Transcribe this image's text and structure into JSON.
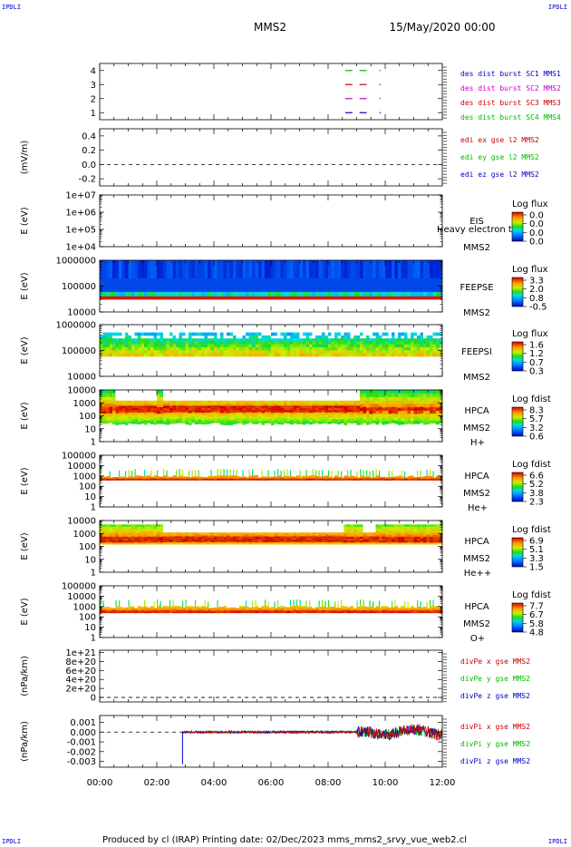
{
  "header": {
    "corner_labels": [
      "IPDLI",
      "IPDLI",
      "IPDLI",
      "IPDLI"
    ],
    "title": "MMS2",
    "date": "15/May/2020 00:00",
    "footer": "Produced by cl (IRAP)   Printing date: 02/Dec/2023   mms_mms2_srvy_vue_web2.cl"
  },
  "chart_data": {
    "type": "multi-panel-timeseries",
    "time_axis": {
      "unit": "hours",
      "range": [
        0,
        12
      ],
      "ticks": [
        0,
        2,
        4,
        6,
        8,
        10,
        12
      ],
      "tick_labels": [
        "00:00",
        "02:00",
        "04:00",
        "06:00",
        "08:00",
        "10:00",
        "12:00"
      ]
    },
    "panels": [
      {
        "id": "burst",
        "kind": "burst",
        "ylabel": "",
        "ylim": [
          0.5,
          4.5
        ],
        "yticks": [
          1,
          2,
          3,
          4
        ],
        "ytick_labels": [
          "1",
          "2",
          "3",
          "4"
        ],
        "legend": [
          {
            "text": "des dist burst SC1 MMS1",
            "color": "#0000cc"
          },
          {
            "text": "des dist burst SC2 MMS2",
            "color": "#cc00cc"
          },
          {
            "text": "des dist burst SC3 MMS3",
            "color": "#cc0000"
          },
          {
            "text": "des dist burst SC4 MMS4",
            "color": "#00bb00"
          }
        ],
        "bursts": [
          {
            "sc": 4,
            "color": "#00bb00",
            "intervals": [
              [
                8.6,
                8.85
              ],
              [
                9.1,
                9.35
              ],
              [
                9.8,
                9.85
              ]
            ]
          },
          {
            "sc": 3,
            "color": "#cc0000",
            "intervals": [
              [
                8.6,
                8.85
              ],
              [
                9.1,
                9.35
              ],
              [
                9.8,
                9.85
              ]
            ]
          },
          {
            "sc": 2,
            "color": "#cc00cc",
            "intervals": [
              [
                8.6,
                8.85
              ],
              [
                9.1,
                9.35
              ],
              [
                9.8,
                9.85
              ]
            ]
          },
          {
            "sc": 1,
            "color": "#0000cc",
            "intervals": [
              [
                8.6,
                8.85
              ],
              [
                9.1,
                9.35
              ],
              [
                9.8,
                9.85
              ]
            ]
          }
        ]
      },
      {
        "id": "edi",
        "kind": "line",
        "ylabel": "(mV/m)",
        "ylim": [
          -0.3,
          0.5
        ],
        "yticks": [
          -0.2,
          0.0,
          0.2,
          0.4
        ],
        "ytick_labels": [
          "-0.2",
          "0.0",
          "0.2",
          "0.4"
        ],
        "zero_line": 0,
        "legend": [
          {
            "text": "edi ex gse l2 MMS2",
            "color": "#cc0000"
          },
          {
            "text": "edi ey gse l2 MMS2",
            "color": "#00bb00"
          },
          {
            "text": "edi ez gse l2 MMS2",
            "color": "#0000cc"
          }
        ]
      },
      {
        "id": "eis",
        "kind": "spectrogram",
        "scale": "log",
        "ylabel": "E (eV)",
        "ylim": [
          10000,
          10000000
        ],
        "ytick_labels": [
          "1e+04",
          "1e+05",
          "1e+06",
          "1e+07"
        ],
        "instrument": [
          "EIS",
          "MMS2"
        ],
        "overlay_text": "Heavy electron to",
        "cbar": {
          "title": "Log flux",
          "labels": [
            "0.0",
            "0.0",
            "0.0",
            "0.0"
          ]
        },
        "data_band": null
      },
      {
        "id": "feepse",
        "kind": "spectrogram",
        "scale": "log",
        "ylabel": "E (eV)",
        "ylim": [
          10000,
          1000000
        ],
        "ytick_labels": [
          "10000",
          "100000",
          "1000000"
        ],
        "instrument": [
          "FEEPSE",
          "MMS2"
        ],
        "cbar": {
          "title": "Log flux",
          "labels": [
            "3.3",
            "2.0",
            "0.8",
            "-0.5"
          ]
        },
        "data_band": {
          "top": 1000000,
          "red_floor": 30000,
          "red_top": 40000
        }
      },
      {
        "id": "feepsi",
        "kind": "spectrogram",
        "scale": "log",
        "ylabel": "E (eV)",
        "ylim": [
          10000,
          1000000
        ],
        "ytick_labels": [
          "10000",
          "100000",
          "1000000"
        ],
        "instrument": [
          "FEEPSI",
          "MMS2"
        ],
        "cbar": {
          "title": "Log flux",
          "labels": [
            "1.6",
            "1.2",
            "0.7",
            "0.3"
          ]
        },
        "data_band": {
          "top": 500000,
          "bottom": 60000
        }
      },
      {
        "id": "hpca_h",
        "kind": "spectrogram",
        "scale": "log",
        "ylabel": "E (eV)",
        "ylim": [
          1,
          10000
        ],
        "ytick_labels": [
          "1",
          "10",
          "100",
          "1000",
          "10000"
        ],
        "instrument": [
          "HPCA",
          "MMS2",
          "H+"
        ],
        "cbar": {
          "title": "Log fdist",
          "labels": [
            "8.3",
            "5.7",
            "3.2",
            "0.6"
          ]
        },
        "data_band": {
          "bottom": 20
        }
      },
      {
        "id": "hpca_he",
        "kind": "spectrogram",
        "scale": "log",
        "ylabel": "E (eV)",
        "ylim": [
          1,
          100000
        ],
        "ytick_labels": [
          "1",
          "10",
          "100",
          "1000",
          "10000",
          "100000"
        ],
        "instrument": [
          "HPCA",
          "MMS2",
          "He+"
        ],
        "cbar": {
          "title": "Log fdist",
          "labels": [
            "6.6",
            "5.2",
            "3.8",
            "2.3"
          ]
        },
        "data_band": {
          "red_bottom": 400,
          "red_top": 600
        }
      },
      {
        "id": "hpca_hepp",
        "kind": "spectrogram",
        "scale": "log",
        "ylabel": "E (eV)",
        "ylim": [
          1,
          10000
        ],
        "ytick_labels": [
          "1",
          "10",
          "100",
          "1000",
          "10000"
        ],
        "instrument": [
          "HPCA",
          "MMS2",
          "He++"
        ],
        "cbar": {
          "title": "Log fdist",
          "labels": [
            "6.9",
            "5.1",
            "3.3",
            "1.5"
          ]
        },
        "data_band": {
          "bottom": 150
        }
      },
      {
        "id": "hpca_o",
        "kind": "spectrogram",
        "scale": "log",
        "ylabel": "E (eV)",
        "ylim": [
          1,
          100000
        ],
        "ytick_labels": [
          "1",
          "10",
          "100",
          "1000",
          "10000",
          "100000"
        ],
        "instrument": [
          "HPCA",
          "MMS2",
          "O+"
        ],
        "cbar": {
          "title": "Log fdist",
          "labels": [
            "7.7",
            "6.7",
            "5.8",
            "4.8"
          ]
        },
        "data_band": {
          "red_bottom": 250,
          "red_top": 450
        }
      },
      {
        "id": "divpe",
        "kind": "line",
        "ylabel": "(nPa/km)",
        "ylim": [
          -1e+20,
          1.05e+21
        ],
        "yticks": [
          0,
          2e+20,
          4e+20,
          6e+20,
          8e+20,
          1e+21
        ],
        "ytick_labels": [
          "0",
          "2e+20",
          "4e+20",
          "6e+20",
          "8e+20",
          "1e+21"
        ],
        "zero_line": 0,
        "legend": [
          {
            "text": "divPe x gse MMS2",
            "color": "#cc0000"
          },
          {
            "text": "divPe y gse MMS2",
            "color": "#00bb00"
          },
          {
            "text": "divPe z gse MMS2",
            "color": "#0000cc"
          }
        ]
      },
      {
        "id": "divpi",
        "kind": "line",
        "ylabel": "(nPa/km)",
        "ylim": [
          -0.0036,
          0.0017
        ],
        "yticks": [
          -0.003,
          -0.002,
          -0.001,
          0.0,
          0.001
        ],
        "ytick_labels": [
          "-0.003",
          "-0.002",
          "-0.001",
          "0.000",
          "0.001"
        ],
        "zero_line": 0,
        "data_start": 2.9,
        "legend": [
          {
            "text": "divPi x gse MMS2",
            "color": "#cc0000"
          },
          {
            "text": "divPi y gse MMS2",
            "color": "#00bb00"
          },
          {
            "text": "divPi z gse MMS2",
            "color": "#0000cc"
          }
        ]
      }
    ]
  }
}
